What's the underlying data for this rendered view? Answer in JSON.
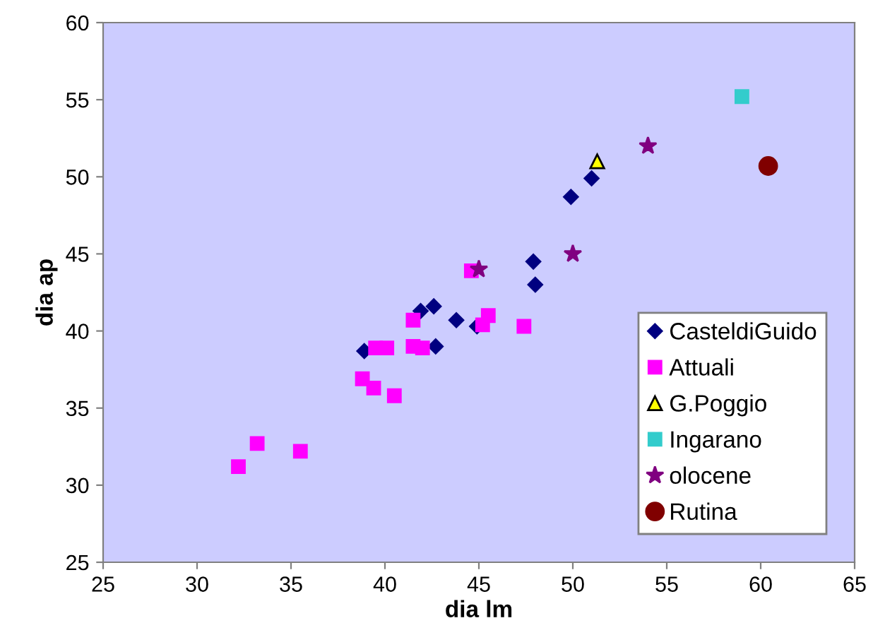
{
  "chart_data": {
    "type": "scatter",
    "xlabel": "dia lm",
    "ylabel": "dia ap",
    "xlim": [
      25,
      65
    ],
    "ylim": [
      25,
      60
    ],
    "xticks": [
      25,
      30,
      35,
      40,
      45,
      50,
      55,
      60,
      65
    ],
    "yticks": [
      25,
      30,
      35,
      40,
      45,
      50,
      55,
      60
    ],
    "grid": false,
    "legend": "bottom right",
    "series": [
      {
        "name": "CasteldiGuido",
        "color": "#000080",
        "marker": "diamond",
        "x": [
          38.9,
          41.9,
          42.6,
          43.8,
          42.7,
          44.9,
          47.9,
          48.0,
          49.9,
          51.0
        ],
        "values": [
          38.7,
          41.3,
          41.6,
          40.7,
          39.0,
          40.3,
          44.5,
          43.0,
          48.7,
          49.9
        ]
      },
      {
        "name": "Attuali",
        "color": "#ff00ff",
        "marker": "square",
        "x": [
          32.2,
          33.2,
          35.5,
          38.8,
          39.4,
          40.5,
          39.5,
          40.1,
          41.5,
          41.5,
          42.0,
          44.6,
          45.2,
          45.5,
          47.4
        ],
        "values": [
          31.2,
          32.7,
          32.2,
          36.9,
          36.3,
          35.8,
          38.9,
          38.9,
          40.7,
          39.0,
          38.9,
          43.9,
          40.4,
          41.0,
          40.3
        ]
      },
      {
        "name": "G.Poggio",
        "color": "#ffff00",
        "marker": "triangle",
        "x": [
          51.3
        ],
        "values": [
          51.0
        ]
      },
      {
        "name": "Ingarano",
        "color": "#33cccc",
        "marker": "square",
        "x": [
          59.0
        ],
        "values": [
          55.2
        ]
      },
      {
        "name": "olocene",
        "color": "#800080",
        "marker": "star",
        "x": [
          45.0,
          50.0,
          54.0
        ],
        "values": [
          44.0,
          45.0,
          52.0
        ]
      },
      {
        "name": "Rutina",
        "color": "#800000",
        "marker": "circle",
        "x": [
          60.4
        ],
        "values": [
          50.7
        ]
      }
    ]
  }
}
